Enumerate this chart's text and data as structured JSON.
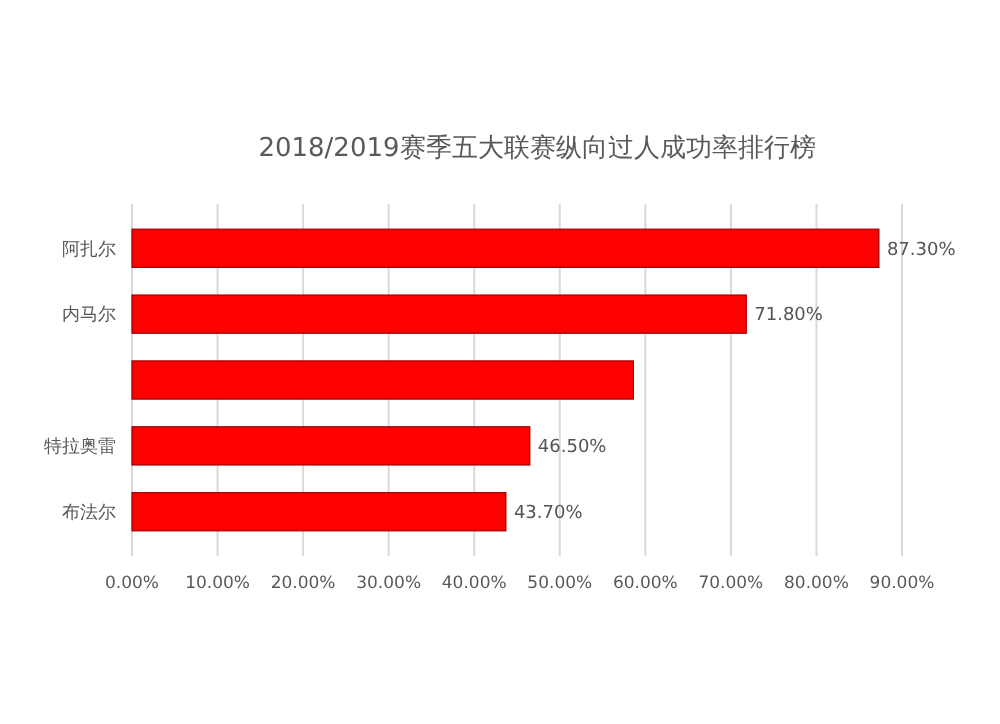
{
  "chart_data": {
    "type": "bar",
    "orientation": "horizontal",
    "title": "2018/2019赛季五大联赛纵向过人成功率排行榜",
    "categories": [
      "阿扎尔",
      "内马尔",
      null,
      "特拉奥雷",
      "布法尔"
    ],
    "values": [
      87.3,
      71.8,
      58.6,
      46.5,
      43.7
    ],
    "color": "#ff0000",
    "value_labels": [
      "87.30%",
      "71.80%",
      null,
      "46.50%",
      "43.70%"
    ],
    "xlim": [
      0,
      90
    ],
    "xticks": [
      {
        "value": 0,
        "label": "0.00%"
      },
      {
        "value": 10,
        "label": "10.00%"
      },
      {
        "value": 20,
        "label": "20.00%"
      },
      {
        "value": 30,
        "label": "30.00%"
      },
      {
        "value": 40,
        "label": "40.00%"
      },
      {
        "value": 50,
        "label": "50.00%"
      },
      {
        "value": 60,
        "label": "60.00%"
      },
      {
        "value": 70,
        "label": "70.00%"
      },
      {
        "value": 80,
        "label": "80.00%"
      },
      {
        "value": 90,
        "label": "90.00%"
      }
    ],
    "grid": "x"
  }
}
